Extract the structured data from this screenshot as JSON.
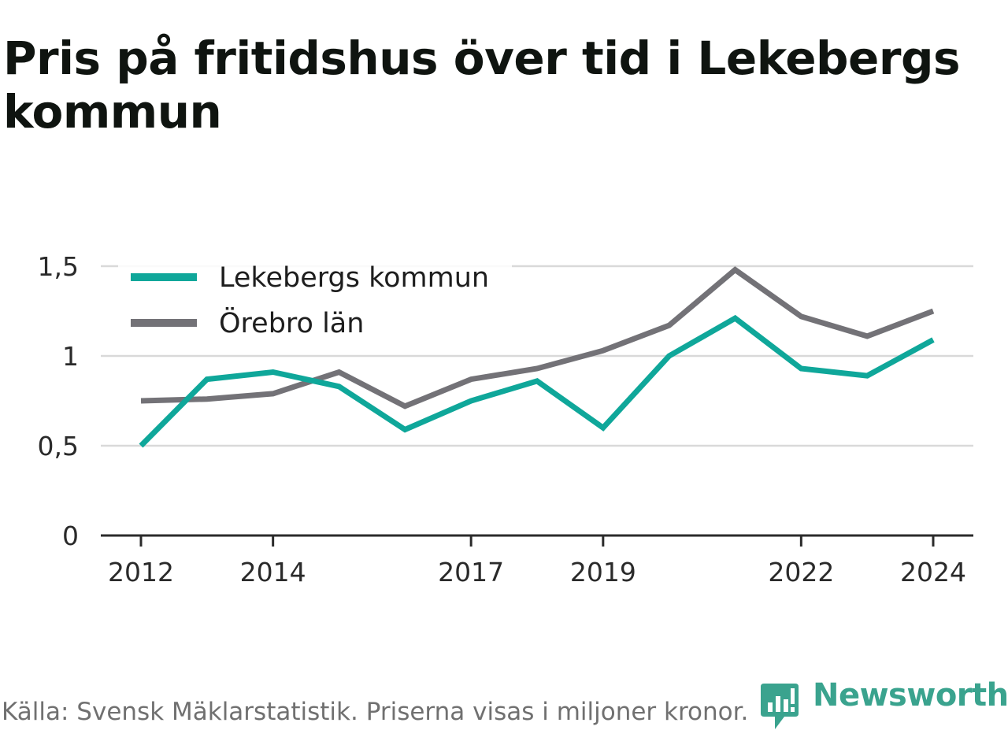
{
  "header": {
    "title": "Pris på fritidshus över tid i Lekebergs kommun"
  },
  "footer": {
    "source": "Källa: Svensk Mäklarstatistik. Priserna visas i miljoner kronor."
  },
  "brand": {
    "name": "Newsworthy",
    "icon": "newsworthy-logo-icon",
    "color": "#3aa38e"
  },
  "chart_data": {
    "type": "line",
    "title": "Pris på fritidshus över tid i Lekebergs kommun",
    "xlabel": "",
    "ylabel": "",
    "x": [
      2012,
      2013,
      2014,
      2015,
      2016,
      2017,
      2018,
      2019,
      2020,
      2021,
      2022,
      2023,
      2024
    ],
    "xticks": [
      2012,
      2014,
      2017,
      2019,
      2022,
      2024
    ],
    "xtick_labels": [
      "2012",
      "2014",
      "2017",
      "2019",
      "2022",
      "2024"
    ],
    "yticks": [
      0,
      0.5,
      1,
      1.5
    ],
    "ytick_labels": [
      "0",
      "0,5",
      "1",
      "1,5"
    ],
    "ylim": [
      0,
      1.5
    ],
    "grid": true,
    "legend_position": "top-left",
    "series": [
      {
        "name": "Lekebergs kommun",
        "color": "#0fa79a",
        "values": [
          0.5,
          0.87,
          0.91,
          0.83,
          0.59,
          0.75,
          0.86,
          0.6,
          1.0,
          1.21,
          0.93,
          0.89,
          1.09
        ]
      },
      {
        "name": "Örebro län",
        "color": "#737277",
        "values": [
          0.75,
          0.76,
          0.79,
          0.91,
          0.72,
          0.87,
          0.93,
          1.03,
          1.17,
          1.48,
          1.22,
          1.11,
          1.25
        ]
      }
    ]
  }
}
